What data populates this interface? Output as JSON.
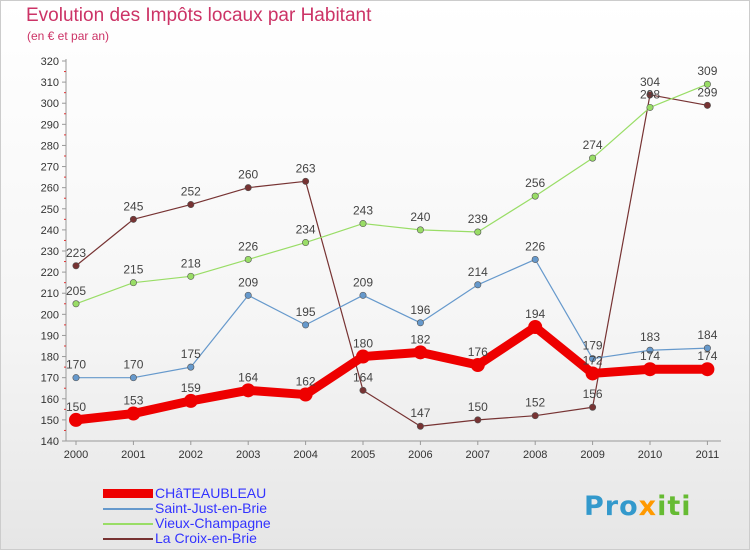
{
  "title": "Evolution des Impôts locaux par Habitant",
  "subtitle": "(en € et par an)",
  "logo": {
    "part1": "Pro",
    "part2": "x",
    "part3": "iti"
  },
  "chart_data": {
    "type": "line",
    "x": [
      "2000",
      "2001",
      "2002",
      "2003",
      "2004",
      "2005",
      "2006",
      "2007",
      "2008",
      "2009",
      "2010",
      "2011"
    ],
    "ylim": [
      140,
      320
    ],
    "yticks": [
      140,
      150,
      160,
      170,
      180,
      190,
      200,
      210,
      220,
      230,
      240,
      250,
      260,
      270,
      280,
      290,
      300,
      310,
      320
    ],
    "grid": false,
    "legend_position": "bottom-left",
    "series": [
      {
        "name": "CHâTEAUBLEAU",
        "color": "#ee0000",
        "width": 9,
        "marker": 7,
        "values": [
          150,
          153,
          159,
          164,
          162,
          180,
          182,
          176,
          194,
          172,
          174,
          174
        ]
      },
      {
        "name": "Saint-Just-en-Brie",
        "color": "#6699cc",
        "width": 1.2,
        "marker": 3.2,
        "values": [
          170,
          170,
          175,
          209,
          195,
          209,
          196,
          214,
          226,
          179,
          183,
          184
        ]
      },
      {
        "name": "Vieux-Champagne",
        "color": "#99dd66",
        "width": 1.2,
        "marker": 3.2,
        "values": [
          205,
          215,
          218,
          226,
          234,
          243,
          240,
          239,
          256,
          274,
          298,
          309
        ]
      },
      {
        "name": "La Croix-en-Brie",
        "color": "#773333",
        "width": 1.2,
        "marker": 3.2,
        "values": [
          223,
          245,
          252,
          260,
          263,
          164,
          147,
          150,
          152,
          156,
          304,
          299
        ]
      }
    ]
  }
}
